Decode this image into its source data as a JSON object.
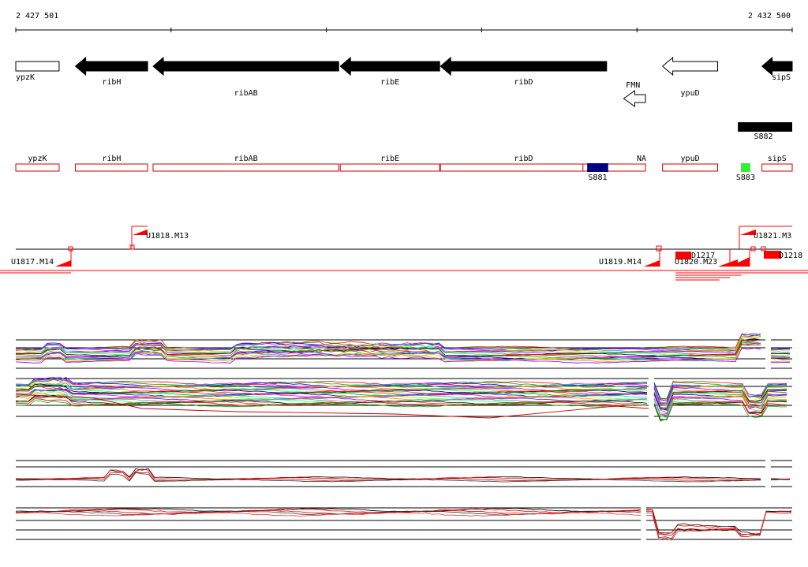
{
  "ruler": {
    "start_label": "2 427 501",
    "end_label": "2 432 500",
    "start_bp": 2427501,
    "end_bp": 2432500
  },
  "genes_top": [
    {
      "id": "ypzK",
      "label": "ypzK",
      "start": 2427501,
      "end": 2427780,
      "strand": "+",
      "filled": false
    },
    {
      "id": "ribH",
      "label": "ribH",
      "start": 2427885,
      "end": 2428350,
      "strand": "-",
      "filled": true
    },
    {
      "id": "ribAB",
      "label": "ribAB",
      "start": 2428385,
      "end": 2429580,
      "strand": "-",
      "filled": true
    },
    {
      "id": "ribE",
      "label": "ribE",
      "start": 2429590,
      "end": 2430230,
      "strand": "-",
      "filled": true
    },
    {
      "id": "ribD",
      "label": "ribD",
      "start": 2430235,
      "end": 2431305,
      "strand": "-",
      "filled": true
    },
    {
      "id": "ypuD",
      "label": "ypuD",
      "start": 2431665,
      "end": 2432020,
      "strand": "-",
      "filled": false
    },
    {
      "id": "sipS",
      "label": "sipS",
      "start": 2432305,
      "end": 2432500,
      "strand": "-",
      "filled": true
    }
  ],
  "riboswitch": {
    "label": "FMN",
    "start": 2431415,
    "end": 2431555,
    "strand": "-"
  },
  "s882": {
    "label": "S882",
    "start": 2432150,
    "end": 2432500
  },
  "genes_annot": [
    {
      "label": "ypzK",
      "start": 2427501,
      "end": 2427780
    },
    {
      "label": "ribH",
      "start": 2427885,
      "end": 2428350
    },
    {
      "label": "ribAB",
      "start": 2428385,
      "end": 2429580
    },
    {
      "label": "ribE",
      "start": 2429590,
      "end": 2430230
    },
    {
      "label": "ribD",
      "start": 2430235,
      "end": 2431305
    },
    {
      "label": "NA",
      "start": 2431305,
      "end": 2431555
    },
    {
      "label": "ypuD",
      "start": 2431665,
      "end": 2432020
    },
    {
      "label": "sipS",
      "start": 2432305,
      "end": 2432500
    }
  ],
  "segments": [
    {
      "label": "S881",
      "start": 2431180,
      "end": 2431315,
      "color": "#000080"
    },
    {
      "label": "S883",
      "start": 2432170,
      "end": 2432230,
      "color": "#33ee33"
    }
  ],
  "tss_labels": [
    {
      "label": "U1817.M14"
    },
    {
      "label": "U1818.M13"
    },
    {
      "label": "U1819.M14"
    },
    {
      "label": "U1820.M23"
    },
    {
      "label": "U1821.M3"
    },
    {
      "label": "D1217"
    },
    {
      "label": "D1218"
    }
  ],
  "colors": {
    "accent": "#ff0000",
    "gene": "#000000",
    "s881": "#000080",
    "s883": "#33ee33"
  }
}
